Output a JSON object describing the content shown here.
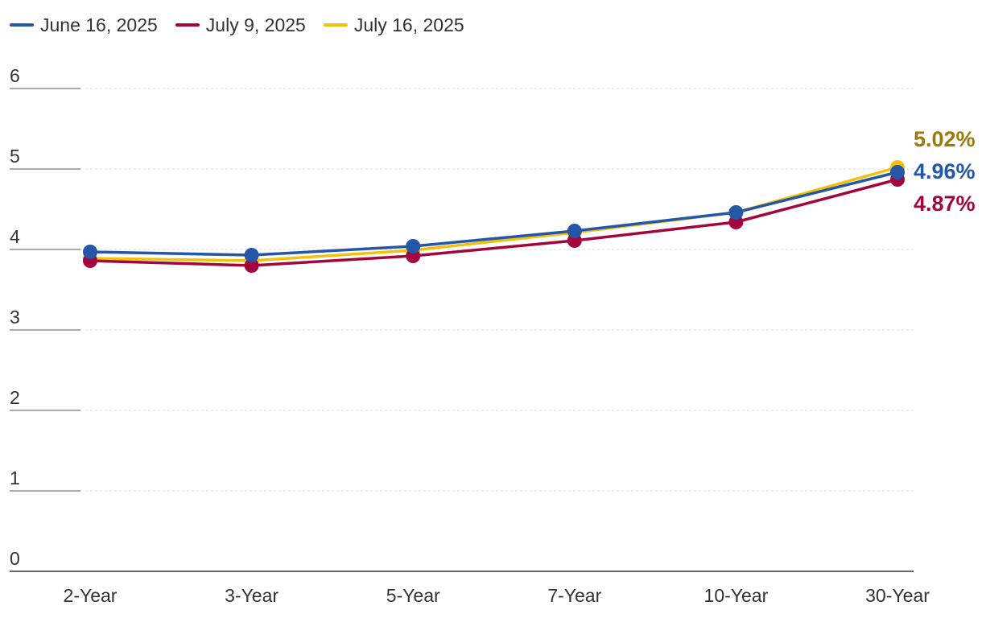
{
  "legend": [
    {
      "name": "June 16, 2025",
      "color": "#2457a8"
    },
    {
      "name": "July 9, 2025",
      "color": "#a3063c"
    },
    {
      "name": "July 16, 2025",
      "color": "#f2c10c"
    }
  ],
  "chart_data": {
    "type": "line",
    "categories": [
      "2-Year",
      "3-Year",
      "5-Year",
      "7-Year",
      "10-Year",
      "30-Year"
    ],
    "ylim": [
      0,
      6
    ],
    "yticks": [
      0,
      1,
      2,
      3,
      4,
      5,
      6
    ],
    "grid": true,
    "legend_position": "top-left",
    "series": [
      {
        "name": "July 16, 2025",
        "color": "#f2c10c",
        "values": [
          3.89,
          3.86,
          3.99,
          4.21,
          4.46,
          5.02
        ]
      },
      {
        "name": "July 9, 2025",
        "color": "#a3063c",
        "values": [
          3.86,
          3.8,
          3.92,
          4.11,
          4.34,
          4.87
        ]
      },
      {
        "name": "June 16, 2025",
        "color": "#2457a8",
        "values": [
          3.97,
          3.93,
          4.04,
          4.23,
          4.46,
          4.96
        ]
      }
    ],
    "end_labels": [
      {
        "series": "July 16, 2025",
        "text": "5.02%",
        "color": "#9a7a0a"
      },
      {
        "series": "June 16, 2025",
        "text": "4.96%",
        "color": "#2457a8"
      },
      {
        "series": "July 9, 2025",
        "text": "4.87%",
        "color": "#a3063c"
      }
    ]
  }
}
